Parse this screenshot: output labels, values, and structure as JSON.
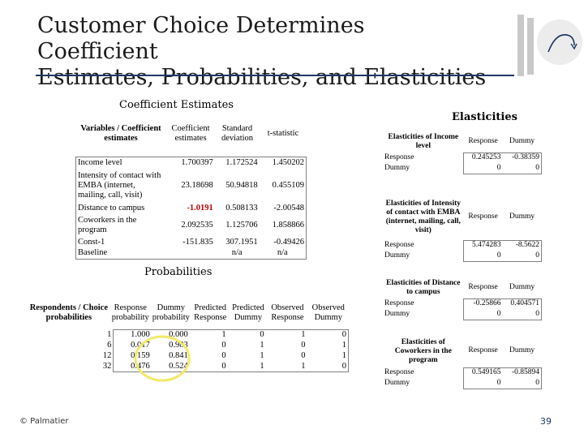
{
  "slide": {
    "title_line1": "Customer Choice Determines Coefficient",
    "title_line2": "Estimates, Probabilities, and Elasticities",
    "footer": "© Palmatier",
    "page_number": "39"
  },
  "coefficients": {
    "heading": "Coefficient Estimates",
    "headers": [
      "Variables / Coefficient estimates",
      "Coefficient estimates",
      "Standard deviation",
      "t-statistic"
    ],
    "rows": [
      {
        "label": "Income level",
        "coef": "1.700397",
        "sd": "1.172524",
        "t": "1.450202"
      },
      {
        "label": "Intensity of contact with EMBA (internet, mailing, call, visit)",
        "coef": "23.18698",
        "sd": "50.94818",
        "t": "0.455109"
      },
      {
        "label": "Distance to campus",
        "coef": "-1.0191",
        "sd": "0.508133",
        "t": "-2.00548"
      },
      {
        "label": "Coworkers in the program",
        "coef": "2.092535",
        "sd": "1.125706",
        "t": "1.858866"
      },
      {
        "label": "Const-1",
        "coef": "-151.835",
        "sd": "307.1951",
        "t": "-0.49426"
      },
      {
        "label": "Baseline",
        "coef": "",
        "sd": "n/a",
        "t": "n/a"
      }
    ]
  },
  "probabilities": {
    "heading": "Probabilities",
    "headers": [
      "Respondents / Choice probabilities",
      "Response probability",
      "Dummy probability",
      "Predicted Response",
      "Predicted Dummy",
      "Observed Response",
      "Observed Dummy"
    ],
    "rows": [
      {
        "resp": "1",
        "p_resp": "1.000",
        "p_dummy": "0.000",
        "pred_r": "1",
        "pred_d": "0",
        "obs_r": "1",
        "obs_d": "0"
      },
      {
        "resp": "6",
        "p_resp": "0.017",
        "p_dummy": "0.983",
        "pred_r": "0",
        "pred_d": "1",
        "obs_r": "0",
        "obs_d": "1"
      },
      {
        "resp": "12",
        "p_resp": "0.159",
        "p_dummy": "0.841",
        "pred_r": "0",
        "pred_d": "1",
        "obs_r": "0",
        "obs_d": "1"
      },
      {
        "resp": "32",
        "p_resp": "0.476",
        "p_dummy": "0.524",
        "pred_r": "0",
        "pred_d": "1",
        "obs_r": "1",
        "obs_d": "0"
      }
    ]
  },
  "elasticities": {
    "heading": "Elasticities",
    "blocks": [
      {
        "title": "Elasticities of Income level",
        "col1": "Response",
        "col2": "Dummy",
        "rows": [
          {
            "label": "Response",
            "v1": "0.245253",
            "v2": "-0.38359"
          },
          {
            "label": "Dummy",
            "v1": "0",
            "v2": "0"
          }
        ]
      },
      {
        "title": "Elasticities of Intensity of contact with EMBA (internet, mailing, call, visit)",
        "col1": "Response",
        "col2": "Dummy",
        "rows": [
          {
            "label": "Response",
            "v1": "5.474283",
            "v2": "-8.5622"
          },
          {
            "label": "Dummy",
            "v1": "0",
            "v2": "0"
          }
        ]
      },
      {
        "title": "Elasticities of Distance to campus",
        "col1": "Response",
        "col2": "Dummy",
        "rows": [
          {
            "label": "Response",
            "v1": "-0.25866",
            "v2": "0.404571"
          },
          {
            "label": "Dummy",
            "v1": "0",
            "v2": "0"
          }
        ]
      },
      {
        "title": "Elasticities of Coworkers in the program",
        "col1": "Response",
        "col2": "Dummy",
        "rows": [
          {
            "label": "Response",
            "v1": "0.549165",
            "v2": "-0.85894"
          },
          {
            "label": "Dummy",
            "v1": "0",
            "v2": "0"
          }
        ]
      }
    ]
  },
  "colors": {
    "accent": "#1f3864",
    "highlight": "#f2e96b",
    "negative": "#c00000"
  }
}
